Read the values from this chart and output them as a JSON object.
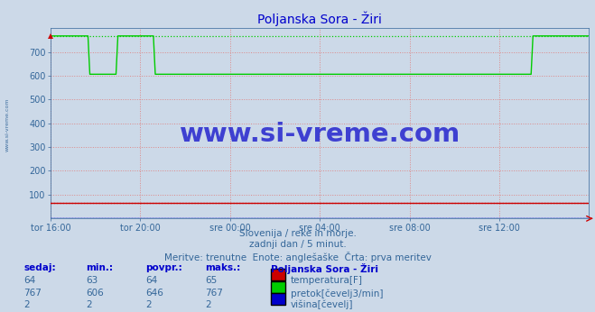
{
  "title": "Poljanska Sora - Žiri",
  "title_color": "#0000cc",
  "bg_color": "#ccd9e8",
  "plot_bg_color": "#ccd9e8",
  "grid_color": "#dd8888",
  "ylim": [
    0,
    800
  ],
  "yticks": [
    100,
    200,
    300,
    400,
    500,
    600,
    700
  ],
  "xtick_labels": [
    "tor 16:00",
    "tor 20:00",
    "sre 00:00",
    "sre 04:00",
    "sre 08:00",
    "sre 12:00"
  ],
  "n_points": 289,
  "temp_value": 64,
  "temp_color": "#cc0000",
  "pretok_high": 767,
  "pretok_low": 606,
  "pretok_color": "#00cc00",
  "visina_value": 2,
  "visina_color": "#0000cc",
  "pretok_transitions": [
    0.075,
    0.125,
    0.195,
    0.245,
    0.895
  ],
  "watermark_text": "www.si-vreme.com",
  "watermark_color": "#1a1acc",
  "subtitle1": "Slovenija / reke in morje.",
  "subtitle2": "zadnji dan / 5 minut.",
  "subtitle3": "Meritve: trenutne  Enote: anglešaške  Črta: prva meritev",
  "subtitle_color": "#336699",
  "legend_title": "Poljanska Sora - Žiri",
  "legend_title_color": "#0000cc",
  "legend_items": [
    {
      "label": "temperatura[F]",
      "color": "#cc0000"
    },
    {
      "label": "pretok[čevelj3/min]",
      "color": "#00cc00"
    },
    {
      "label": "višina[čevelj]",
      "color": "#0000cc"
    }
  ],
  "stats_headers": [
    "sedaj:",
    "min.:",
    "povpr.:",
    "maks.:"
  ],
  "stats_rows": [
    [
      64,
      63,
      64,
      65
    ],
    [
      767,
      606,
      646,
      767
    ],
    [
      2,
      2,
      2,
      2
    ]
  ],
  "stats_color": "#336699",
  "header_color": "#0000cc",
  "left_label": "www.si-vreme.com",
  "left_label_color": "#336699"
}
